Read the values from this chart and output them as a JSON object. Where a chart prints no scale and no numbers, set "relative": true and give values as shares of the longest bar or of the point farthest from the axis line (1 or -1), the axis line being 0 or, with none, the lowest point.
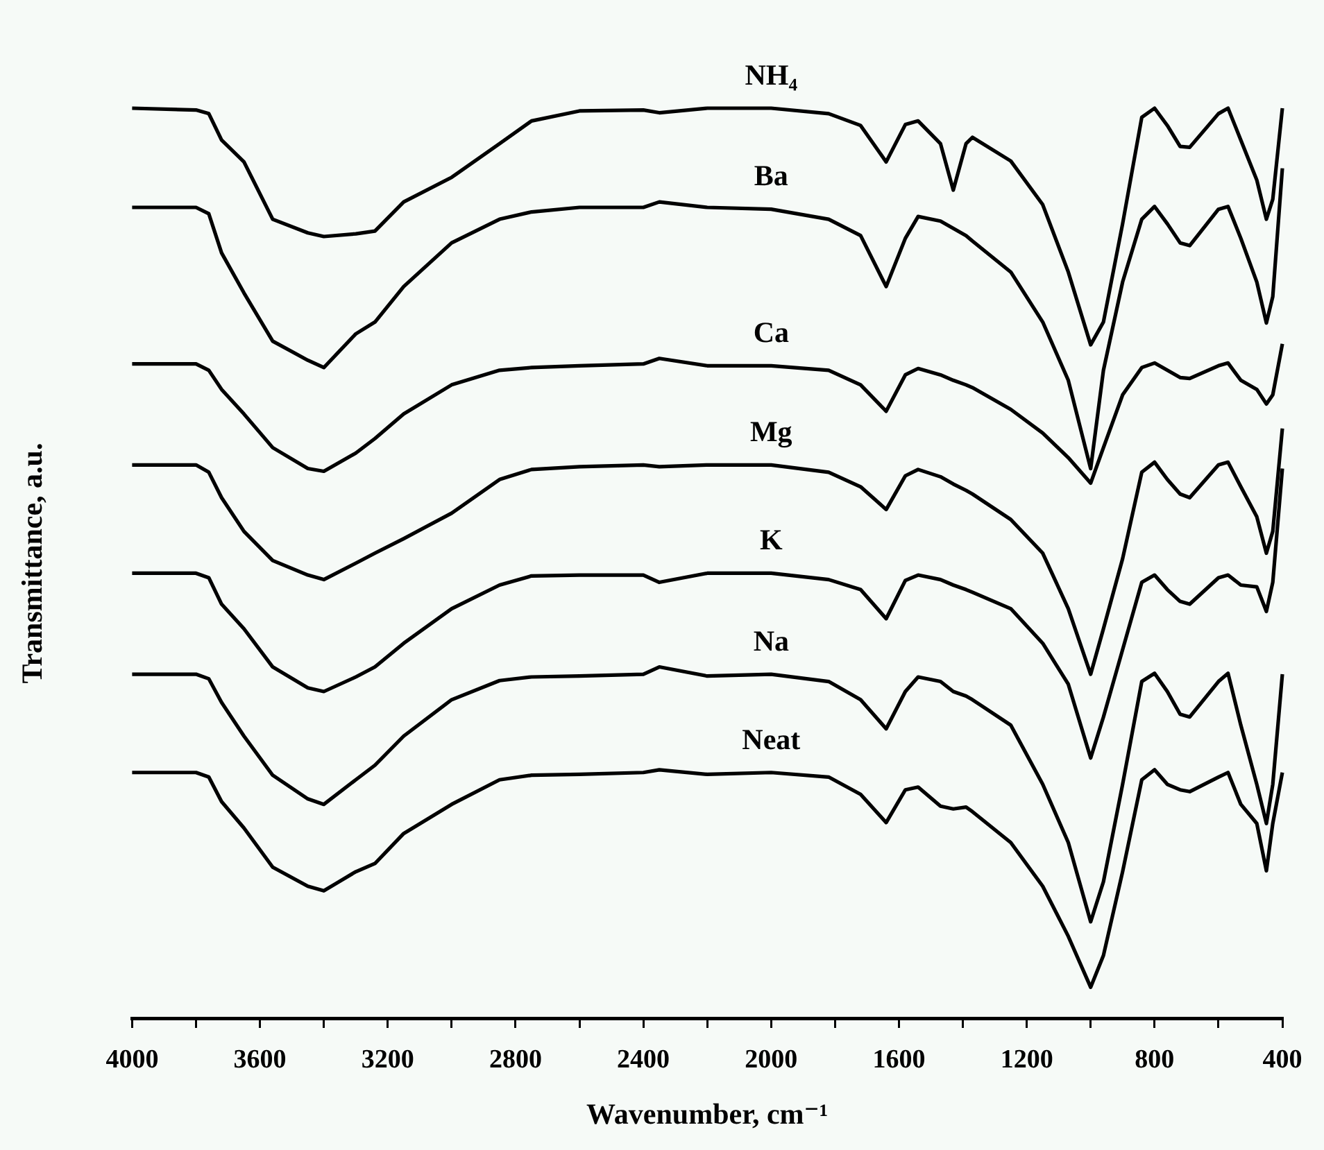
{
  "chart_data": {
    "type": "line",
    "relative": true,
    "xlabel": "Wavenumber, cm⁻¹",
    "ylabel": "Transmittance, a.u.",
    "xlim": [
      4000,
      400
    ],
    "xticks": [
      4000,
      {
        "value": 3800,
        "label": null
      },
      3600,
      {
        "value": 3400,
        "label": null
      },
      3200,
      {
        "value": 3000,
        "label": null
      },
      2800,
      {
        "value": 2600,
        "label": null
      },
      2400,
      {
        "value": 2200,
        "label": null
      },
      2000,
      {
        "value": 1800,
        "label": null
      },
      1600,
      {
        "value": 1400,
        "label": null
      },
      1200,
      {
        "value": 1000,
        "label": null
      },
      800,
      {
        "value": 600,
        "label": null
      },
      400
    ],
    "x": [
      4000,
      3800,
      3760,
      3720,
      3650,
      3560,
      3450,
      3400,
      3300,
      3240,
      3150,
      3000,
      2850,
      2750,
      2600,
      2400,
      2350,
      2200,
      2000,
      1820,
      1720,
      1640,
      1580,
      1540,
      1470,
      1430,
      1390,
      1370,
      1250,
      1150,
      1070,
      1000,
      960,
      900,
      840,
      800,
      760,
      720,
      690,
      600,
      570,
      530,
      480,
      450,
      430,
      400
    ],
    "series": [
      {
        "name": "NH₄",
        "color": "#000000",
        "values": [
          1.0,
          0.998,
          0.994,
          0.965,
          0.941,
          0.878,
          0.863,
          0.859,
          0.862,
          0.865,
          0.897,
          0.924,
          0.961,
          0.986,
          0.997,
          0.998,
          0.995,
          1.0,
          1.0,
          0.994,
          0.981,
          0.941,
          0.982,
          0.986,
          0.961,
          0.91,
          0.961,
          0.968,
          0.942,
          0.894,
          0.82,
          0.74,
          0.765,
          0.873,
          0.99,
          1.0,
          0.981,
          0.958,
          0.957,
          0.994,
          1.0,
          0.965,
          0.921,
          0.878,
          0.9,
          1.0
        ]
      },
      {
        "name": "Ba",
        "color": "#000000",
        "values": [
          0.891,
          0.891,
          0.884,
          0.841,
          0.797,
          0.744,
          0.723,
          0.715,
          0.752,
          0.765,
          0.804,
          0.852,
          0.878,
          0.886,
          0.891,
          0.891,
          0.897,
          0.891,
          0.889,
          0.878,
          0.86,
          0.804,
          0.857,
          0.881,
          0.876,
          0.868,
          0.86,
          0.854,
          0.82,
          0.765,
          0.701,
          0.604,
          0.712,
          0.809,
          0.878,
          0.892,
          0.873,
          0.852,
          0.849,
          0.889,
          0.892,
          0.857,
          0.809,
          0.764,
          0.793,
          0.934
        ]
      },
      {
        "name": "Ca",
        "color": "#000000",
        "values": [
          0.719,
          0.719,
          0.712,
          0.691,
          0.664,
          0.627,
          0.604,
          0.601,
          0.621,
          0.637,
          0.664,
          0.696,
          0.712,
          0.715,
          0.717,
          0.719,
          0.725,
          0.717,
          0.717,
          0.712,
          0.696,
          0.667,
          0.707,
          0.714,
          0.707,
          0.701,
          0.696,
          0.693,
          0.669,
          0.643,
          0.616,
          0.588,
          0.627,
          0.685,
          0.715,
          0.72,
          0.712,
          0.704,
          0.703,
          0.717,
          0.72,
          0.701,
          0.691,
          0.675,
          0.685,
          0.741
        ]
      },
      {
        "name": "Mg",
        "color": "#000000",
        "values": [
          0.608,
          0.608,
          0.6,
          0.572,
          0.535,
          0.503,
          0.487,
          0.482,
          0.5,
          0.511,
          0.527,
          0.555,
          0.592,
          0.603,
          0.606,
          0.608,
          0.606,
          0.608,
          0.608,
          0.6,
          0.584,
          0.559,
          0.596,
          0.603,
          0.595,
          0.587,
          0.58,
          0.576,
          0.548,
          0.511,
          0.45,
          0.378,
          0.428,
          0.505,
          0.6,
          0.611,
          0.592,
          0.576,
          0.572,
          0.608,
          0.611,
          0.584,
          0.551,
          0.511,
          0.535,
          0.648
        ]
      },
      {
        "name": "K",
        "color": "#000000",
        "values": [
          0.489,
          0.489,
          0.484,
          0.455,
          0.428,
          0.386,
          0.363,
          0.359,
          0.375,
          0.386,
          0.412,
          0.45,
          0.476,
          0.486,
          0.487,
          0.487,
          0.479,
          0.489,
          0.489,
          0.482,
          0.471,
          0.439,
          0.481,
          0.487,
          0.482,
          0.476,
          0.471,
          0.468,
          0.45,
          0.412,
          0.367,
          0.286,
          0.331,
          0.405,
          0.479,
          0.487,
          0.471,
          0.458,
          0.455,
          0.484,
          0.487,
          0.476,
          0.474,
          0.447,
          0.479,
          0.604
        ]
      },
      {
        "name": "Na",
        "color": "#000000",
        "values": [
          0.378,
          0.378,
          0.373,
          0.347,
          0.31,
          0.267,
          0.241,
          0.235,
          0.262,
          0.278,
          0.31,
          0.35,
          0.371,
          0.375,
          0.376,
          0.378,
          0.386,
          0.376,
          0.378,
          0.37,
          0.35,
          0.318,
          0.359,
          0.375,
          0.37,
          0.359,
          0.354,
          0.35,
          0.322,
          0.257,
          0.193,
          0.106,
          0.15,
          0.257,
          0.37,
          0.379,
          0.359,
          0.334,
          0.331,
          0.37,
          0.379,
          0.322,
          0.257,
          0.214,
          0.257,
          0.378
        ]
      },
      {
        "name": "Neat",
        "color": "#000000",
        "values": [
          0.27,
          0.27,
          0.265,
          0.238,
          0.209,
          0.166,
          0.145,
          0.14,
          0.161,
          0.17,
          0.203,
          0.235,
          0.262,
          0.267,
          0.268,
          0.27,
          0.273,
          0.268,
          0.27,
          0.265,
          0.246,
          0.215,
          0.251,
          0.254,
          0.233,
          0.23,
          0.232,
          0.227,
          0.193,
          0.145,
          0.09,
          0.034,
          0.069,
          0.161,
          0.262,
          0.273,
          0.257,
          0.251,
          0.249,
          0.265,
          0.27,
          0.235,
          0.214,
          0.162,
          0.214,
          0.27
        ]
      }
    ]
  }
}
